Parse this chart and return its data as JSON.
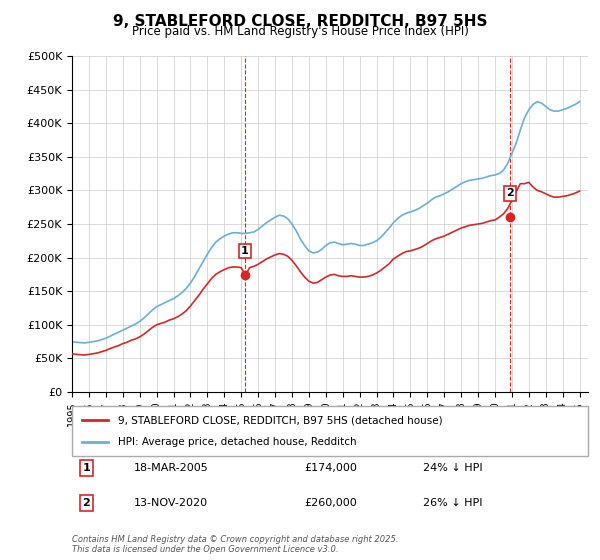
{
  "title": "9, STABLEFORD CLOSE, REDDITCH, B97 5HS",
  "subtitle": "Price paid vs. HM Land Registry's House Price Index (HPI)",
  "ylabel": "",
  "xlabel": "",
  "ylim": [
    0,
    500000
  ],
  "yticks": [
    0,
    50000,
    100000,
    150000,
    200000,
    250000,
    300000,
    350000,
    400000,
    450000,
    500000
  ],
  "ytick_labels": [
    "£0",
    "£50K",
    "£100K",
    "£150K",
    "£200K",
    "£250K",
    "£300K",
    "£350K",
    "£400K",
    "£450K",
    "£500K"
  ],
  "hpi_color": "#6baed6",
  "price_color": "#d62728",
  "vline_color": "#d62728",
  "background_color": "#ffffff",
  "grid_color": "#cccccc",
  "legend1_label": "9, STABLEFORD CLOSE, REDDITCH, B97 5HS (detached house)",
  "legend2_label": "HPI: Average price, detached house, Redditch",
  "purchase1_label": "1",
  "purchase1_date": "18-MAR-2005",
  "purchase1_price": "£174,000",
  "purchase1_hpi": "24% ↓ HPI",
  "purchase1_year": 2005.21,
  "purchase1_value": 174000,
  "purchase2_label": "2",
  "purchase2_date": "13-NOV-2020",
  "purchase2_price": "£260,000",
  "purchase2_hpi": "26% ↓ HPI",
  "purchase2_year": 2020.87,
  "purchase2_value": 260000,
  "copyright_text": "Contains HM Land Registry data © Crown copyright and database right 2025.\nThis data is licensed under the Open Government Licence v3.0.",
  "hpi_data_x": [
    1995.0,
    1995.25,
    1995.5,
    1995.75,
    1996.0,
    1996.25,
    1996.5,
    1996.75,
    1997.0,
    1997.25,
    1997.5,
    1997.75,
    1998.0,
    1998.25,
    1998.5,
    1998.75,
    1999.0,
    1999.25,
    1999.5,
    1999.75,
    2000.0,
    2000.25,
    2000.5,
    2000.75,
    2001.0,
    2001.25,
    2001.5,
    2001.75,
    2002.0,
    2002.25,
    2002.5,
    2002.75,
    2003.0,
    2003.25,
    2003.5,
    2003.75,
    2004.0,
    2004.25,
    2004.5,
    2004.75,
    2005.0,
    2005.25,
    2005.5,
    2005.75,
    2006.0,
    2006.25,
    2006.5,
    2006.75,
    2007.0,
    2007.25,
    2007.5,
    2007.75,
    2008.0,
    2008.25,
    2008.5,
    2008.75,
    2009.0,
    2009.25,
    2009.5,
    2009.75,
    2010.0,
    2010.25,
    2010.5,
    2010.75,
    2011.0,
    2011.25,
    2011.5,
    2011.75,
    2012.0,
    2012.25,
    2012.5,
    2012.75,
    2013.0,
    2013.25,
    2013.5,
    2013.75,
    2014.0,
    2014.25,
    2014.5,
    2014.75,
    2015.0,
    2015.25,
    2015.5,
    2015.75,
    2016.0,
    2016.25,
    2016.5,
    2016.75,
    2017.0,
    2017.25,
    2017.5,
    2017.75,
    2018.0,
    2018.25,
    2018.5,
    2018.75,
    2019.0,
    2019.25,
    2019.5,
    2019.75,
    2020.0,
    2020.25,
    2020.5,
    2020.75,
    2021.0,
    2021.25,
    2021.5,
    2021.75,
    2022.0,
    2022.25,
    2022.5,
    2022.75,
    2023.0,
    2023.25,
    2023.5,
    2023.75,
    2024.0,
    2024.25,
    2024.5,
    2024.75,
    2025.0
  ],
  "hpi_data_y": [
    75000,
    74000,
    73500,
    73000,
    74000,
    75000,
    76000,
    78000,
    80000,
    83000,
    86000,
    89000,
    92000,
    95000,
    98000,
    101000,
    105000,
    110000,
    116000,
    122000,
    127000,
    130000,
    133000,
    136000,
    139000,
    143000,
    148000,
    154000,
    162000,
    172000,
    183000,
    194000,
    205000,
    215000,
    223000,
    228000,
    232000,
    235000,
    237000,
    237000,
    236000,
    236000,
    237000,
    238000,
    242000,
    247000,
    252000,
    256000,
    260000,
    263000,
    262000,
    258000,
    250000,
    240000,
    228000,
    218000,
    210000,
    207000,
    208000,
    212000,
    218000,
    222000,
    223000,
    221000,
    219000,
    220000,
    221000,
    220000,
    218000,
    218000,
    220000,
    222000,
    225000,
    230000,
    237000,
    244000,
    252000,
    258000,
    263000,
    266000,
    268000,
    270000,
    273000,
    277000,
    281000,
    286000,
    290000,
    292000,
    295000,
    298000,
    302000,
    306000,
    310000,
    313000,
    315000,
    316000,
    317000,
    318000,
    320000,
    322000,
    323000,
    325000,
    330000,
    340000,
    355000,
    370000,
    390000,
    408000,
    420000,
    428000,
    432000,
    430000,
    425000,
    420000,
    418000,
    418000,
    420000,
    422000,
    425000,
    428000,
    432000
  ],
  "price_data_x": [
    1995.0,
    1995.25,
    1995.5,
    1995.75,
    1996.0,
    1996.25,
    1996.5,
    1996.75,
    1997.0,
    1997.25,
    1997.5,
    1997.75,
    1998.0,
    1998.25,
    1998.5,
    1998.75,
    1999.0,
    1999.25,
    1999.5,
    1999.75,
    2000.0,
    2000.25,
    2000.5,
    2000.75,
    2001.0,
    2001.25,
    2001.5,
    2001.75,
    2002.0,
    2002.25,
    2002.5,
    2002.75,
    2003.0,
    2003.25,
    2003.5,
    2003.75,
    2004.0,
    2004.25,
    2004.5,
    2004.75,
    2005.0,
    2005.25,
    2005.5,
    2005.75,
    2006.0,
    2006.25,
    2006.5,
    2006.75,
    2007.0,
    2007.25,
    2007.5,
    2007.75,
    2008.0,
    2008.25,
    2008.5,
    2008.75,
    2009.0,
    2009.25,
    2009.5,
    2009.75,
    2010.0,
    2010.25,
    2010.5,
    2010.75,
    2011.0,
    2011.25,
    2011.5,
    2011.75,
    2012.0,
    2012.25,
    2012.5,
    2012.75,
    2013.0,
    2013.25,
    2013.5,
    2013.75,
    2014.0,
    2014.25,
    2014.5,
    2014.75,
    2015.0,
    2015.25,
    2015.5,
    2015.75,
    2016.0,
    2016.25,
    2016.5,
    2016.75,
    2017.0,
    2017.25,
    2017.5,
    2017.75,
    2018.0,
    2018.25,
    2018.5,
    2018.75,
    2019.0,
    2019.25,
    2019.5,
    2019.75,
    2020.0,
    2020.25,
    2020.5,
    2020.75,
    2021.0,
    2021.25,
    2021.5,
    2021.75,
    2022.0,
    2022.25,
    2022.5,
    2022.75,
    2023.0,
    2023.25,
    2023.5,
    2023.75,
    2024.0,
    2024.25,
    2024.5,
    2024.75,
    2025.0
  ],
  "price_data_y": [
    57000,
    56000,
    55500,
    55000,
    56000,
    57000,
    58000,
    60000,
    62000,
    64500,
    67000,
    69000,
    72000,
    74000,
    77000,
    79000,
    82000,
    86000,
    91000,
    96000,
    100000,
    102000,
    104000,
    107000,
    109000,
    112000,
    116000,
    121000,
    128000,
    136000,
    144000,
    153000,
    161000,
    169000,
    175000,
    179000,
    182000,
    185000,
    186000,
    186000,
    185000,
    174000,
    185000,
    187000,
    190000,
    194000,
    198000,
    201000,
    204000,
    206000,
    205000,
    202000,
    196000,
    188000,
    179000,
    171000,
    165000,
    162000,
    163000,
    167000,
    171000,
    174000,
    175000,
    173000,
    172000,
    172000,
    173000,
    172000,
    171000,
    171000,
    172000,
    174000,
    177000,
    181000,
    186000,
    191000,
    198000,
    202000,
    206000,
    209000,
    210000,
    212000,
    214000,
    217000,
    221000,
    225000,
    228000,
    230000,
    232000,
    235000,
    238000,
    241000,
    244000,
    246000,
    248000,
    249000,
    250000,
    251000,
    253000,
    255000,
    256000,
    260000,
    265000,
    273000,
    285000,
    298000,
    310000,
    310000,
    312000,
    305000,
    300000,
    298000,
    295000,
    292000,
    290000,
    290000,
    291000,
    292000,
    294000,
    296000,
    299000
  ]
}
